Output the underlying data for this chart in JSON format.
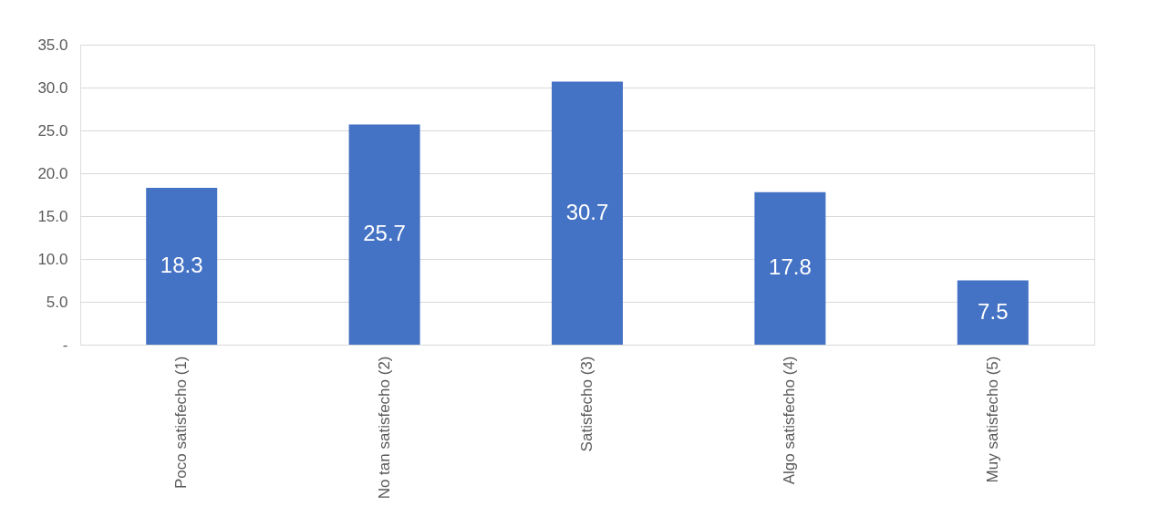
{
  "chart_data": {
    "type": "bar",
    "categories": [
      "Poco satisfecho (1)",
      "No tan satisfecho (2)",
      "Satisfecho (3)",
      "Algo satisfecho (4)",
      "Muy satisfecho (5)"
    ],
    "values": [
      18.3,
      25.7,
      30.7,
      17.8,
      7.5
    ],
    "color": "#4472c4",
    "ylim": [
      0,
      35
    ],
    "yticks": [
      {
        "value": 0,
        "label": "-"
      },
      {
        "value": 5,
        "label": "5.0"
      },
      {
        "value": 10,
        "label": "10.0"
      },
      {
        "value": 15,
        "label": "15.0"
      },
      {
        "value": 20,
        "label": "20.0"
      },
      {
        "value": 25,
        "label": "25.0"
      },
      {
        "value": 30,
        "label": "30.0"
      },
      {
        "value": 35,
        "label": "35.0"
      }
    ],
    "grid": "y",
    "data_labels": true
  }
}
